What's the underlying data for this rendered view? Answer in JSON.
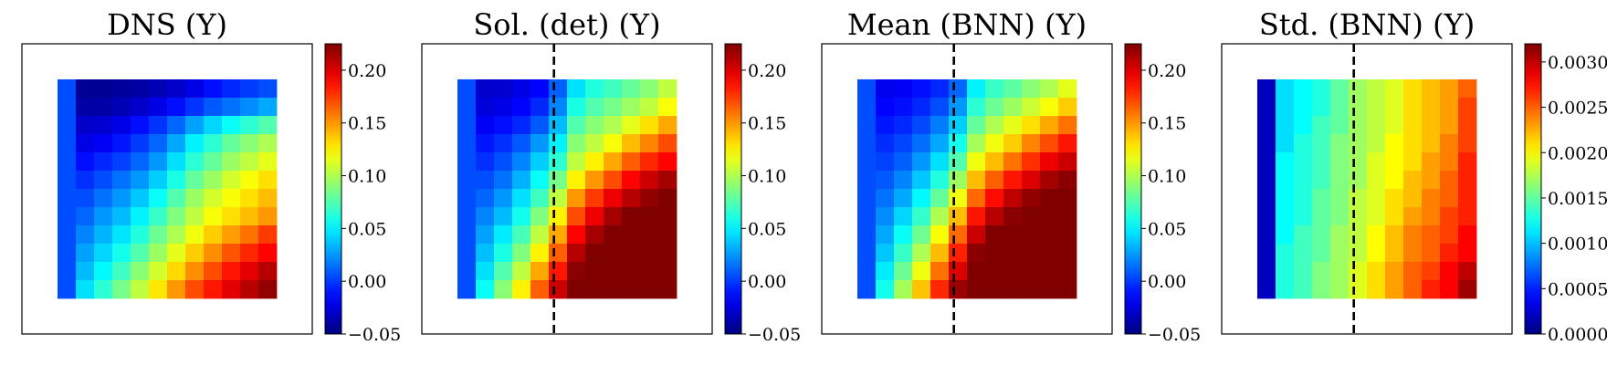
{
  "chart_data": [
    {
      "type": "heatmap",
      "title": "DNS (Y)",
      "grid_rows": 12,
      "grid_cols": 12,
      "colormap": "jet",
      "vmin": -0.05,
      "vmax": 0.225,
      "colorbar_ticks": [
        -0.05,
        0.0,
        0.05,
        0.1,
        0.15,
        0.2
      ],
      "colorbar_tick_labels": [
        "−0.05",
        "0.00",
        "0.05",
        "0.10",
        "0.15",
        "0.20"
      ],
      "dashed_line_x": null,
      "values": [
        [
          0.005,
          -0.045,
          -0.045,
          -0.042,
          -0.04,
          -0.035,
          -0.03,
          -0.022,
          -0.012,
          -0.005,
          0.0,
          0.005
        ],
        [
          0.005,
          -0.04,
          -0.04,
          -0.035,
          -0.03,
          -0.022,
          -0.012,
          -0.002,
          0.008,
          0.015,
          0.022,
          0.03
        ],
        [
          0.005,
          -0.03,
          -0.028,
          -0.022,
          -0.012,
          -0.002,
          0.012,
          0.028,
          0.042,
          0.055,
          0.065,
          0.075
        ],
        [
          0.005,
          -0.022,
          -0.018,
          -0.01,
          0.0,
          0.012,
          0.03,
          0.05,
          0.065,
          0.08,
          0.09,
          0.1
        ],
        [
          0.005,
          -0.012,
          -0.005,
          0.002,
          0.012,
          0.025,
          0.045,
          0.065,
          0.08,
          0.095,
          0.105,
          0.115
        ],
        [
          0.005,
          -0.003,
          0.005,
          0.015,
          0.025,
          0.04,
          0.06,
          0.08,
          0.095,
          0.11,
          0.12,
          0.13
        ],
        [
          0.005,
          0.005,
          0.015,
          0.025,
          0.038,
          0.055,
          0.075,
          0.095,
          0.11,
          0.12,
          0.13,
          0.14
        ],
        [
          0.005,
          0.012,
          0.025,
          0.035,
          0.05,
          0.068,
          0.088,
          0.105,
          0.12,
          0.13,
          0.14,
          0.15
        ],
        [
          0.005,
          0.02,
          0.033,
          0.046,
          0.062,
          0.082,
          0.1,
          0.118,
          0.135,
          0.148,
          0.16,
          0.175
        ],
        [
          0.005,
          0.028,
          0.042,
          0.058,
          0.075,
          0.095,
          0.115,
          0.135,
          0.152,
          0.168,
          0.18,
          0.19
        ],
        [
          0.005,
          0.035,
          0.052,
          0.07,
          0.09,
          0.11,
          0.132,
          0.152,
          0.17,
          0.185,
          0.198,
          0.21
        ],
        [
          0.005,
          0.045,
          0.065,
          0.085,
          0.105,
          0.128,
          0.15,
          0.17,
          0.185,
          0.198,
          0.21,
          0.22
        ]
      ]
    },
    {
      "type": "heatmap",
      "title": "Sol. (det) (Y)",
      "grid_rows": 12,
      "grid_cols": 12,
      "colormap": "jet",
      "vmin": -0.05,
      "vmax": 0.225,
      "colorbar_ticks": [
        -0.05,
        0.0,
        0.05,
        0.1,
        0.15,
        0.2
      ],
      "colorbar_tick_labels": [
        "−0.05",
        "0.00",
        "0.05",
        "0.10",
        "0.15",
        "0.20"
      ],
      "dashed_line_x": 0.455,
      "values": [
        [
          0.005,
          -0.03,
          -0.028,
          -0.022,
          -0.015,
          0.01,
          0.045,
          0.062,
          0.07,
          0.08,
          0.09,
          0.105
        ],
        [
          0.005,
          -0.025,
          -0.022,
          -0.015,
          -0.005,
          0.02,
          0.06,
          0.075,
          0.085,
          0.095,
          0.105,
          0.12
        ],
        [
          0.005,
          -0.018,
          -0.012,
          -0.005,
          0.008,
          0.035,
          0.075,
          0.09,
          0.1,
          0.115,
          0.13,
          0.145
        ],
        [
          0.005,
          -0.01,
          -0.003,
          0.008,
          0.025,
          0.05,
          0.09,
          0.105,
          0.12,
          0.14,
          0.155,
          0.17
        ],
        [
          0.005,
          -0.003,
          0.006,
          0.02,
          0.04,
          0.065,
          0.105,
          0.125,
          0.145,
          0.165,
          0.18,
          0.19
        ],
        [
          0.005,
          0.005,
          0.015,
          0.032,
          0.055,
          0.085,
          0.125,
          0.15,
          0.17,
          0.19,
          0.205,
          0.215
        ],
        [
          0.005,
          0.012,
          0.025,
          0.045,
          0.07,
          0.105,
          0.15,
          0.175,
          0.195,
          0.21,
          0.22,
          0.225
        ],
        [
          0.005,
          0.02,
          0.035,
          0.058,
          0.088,
          0.125,
          0.17,
          0.195,
          0.215,
          0.225,
          0.225,
          0.225
        ],
        [
          0.005,
          0.028,
          0.048,
          0.072,
          0.105,
          0.145,
          0.19,
          0.215,
          0.225,
          0.225,
          0.225,
          0.225
        ],
        [
          0.005,
          0.036,
          0.06,
          0.088,
          0.125,
          0.165,
          0.21,
          0.225,
          0.225,
          0.225,
          0.225,
          0.225
        ],
        [
          0.005,
          0.045,
          0.075,
          0.105,
          0.145,
          0.185,
          0.222,
          0.225,
          0.225,
          0.225,
          0.225,
          0.225
        ],
        [
          0.005,
          0.055,
          0.09,
          0.125,
          0.165,
          0.205,
          0.225,
          0.225,
          0.225,
          0.225,
          0.225,
          0.225
        ]
      ]
    },
    {
      "type": "heatmap",
      "title": "Mean (BNN) (Y)",
      "grid_rows": 12,
      "grid_cols": 12,
      "colormap": "jet",
      "vmin": -0.05,
      "vmax": 0.225,
      "colorbar_ticks": [
        -0.05,
        0.0,
        0.05,
        0.1,
        0.15,
        0.2
      ],
      "colorbar_tick_labels": [
        "−0.05",
        "0.00",
        "0.05",
        "0.10",
        "0.15",
        "0.20"
      ],
      "dashed_line_x": 0.455,
      "values": [
        [
          0.005,
          -0.02,
          -0.018,
          -0.012,
          -0.005,
          0.012,
          0.05,
          0.068,
          0.078,
          0.09,
          0.1,
          0.115
        ],
        [
          0.005,
          -0.015,
          -0.012,
          -0.005,
          0.005,
          0.025,
          0.065,
          0.082,
          0.095,
          0.108,
          0.12,
          0.135
        ],
        [
          0.005,
          -0.01,
          -0.005,
          0.004,
          0.018,
          0.04,
          0.08,
          0.1,
          0.115,
          0.13,
          0.145,
          0.16
        ],
        [
          0.005,
          -0.004,
          0.003,
          0.014,
          0.03,
          0.058,
          0.098,
          0.118,
          0.135,
          0.155,
          0.17,
          0.185
        ],
        [
          0.005,
          0.002,
          0.01,
          0.025,
          0.045,
          0.075,
          0.118,
          0.14,
          0.16,
          0.178,
          0.195,
          0.205
        ],
        [
          0.005,
          0.008,
          0.02,
          0.038,
          0.062,
          0.095,
          0.14,
          0.165,
          0.185,
          0.2,
          0.215,
          0.222
        ],
        [
          0.005,
          0.015,
          0.03,
          0.052,
          0.08,
          0.118,
          0.162,
          0.188,
          0.208,
          0.22,
          0.225,
          0.225
        ],
        [
          0.005,
          0.022,
          0.042,
          0.067,
          0.1,
          0.14,
          0.185,
          0.21,
          0.222,
          0.225,
          0.225,
          0.225
        ],
        [
          0.005,
          0.03,
          0.055,
          0.083,
          0.12,
          0.162,
          0.205,
          0.225,
          0.225,
          0.225,
          0.225,
          0.225
        ],
        [
          0.005,
          0.038,
          0.068,
          0.1,
          0.14,
          0.182,
          0.222,
          0.225,
          0.225,
          0.225,
          0.225,
          0.225
        ],
        [
          0.005,
          0.048,
          0.082,
          0.118,
          0.16,
          0.2,
          0.225,
          0.225,
          0.225,
          0.225,
          0.225,
          0.225
        ],
        [
          0.005,
          0.058,
          0.098,
          0.138,
          0.18,
          0.218,
          0.225,
          0.225,
          0.225,
          0.225,
          0.225,
          0.225
        ]
      ]
    },
    {
      "type": "heatmap",
      "title": "Std. (BNN) (Y)",
      "grid_rows": 12,
      "grid_cols": 12,
      "colormap": "jet",
      "vmin": 0.0,
      "vmax": 0.0032,
      "colorbar_ticks": [
        0.0,
        0.0005,
        0.001,
        0.0015,
        0.002,
        0.0025,
        0.003
      ],
      "colorbar_tick_labels": [
        "0.0000",
        "0.0005",
        "0.0010",
        "0.0015",
        "0.0020",
        "0.0025",
        "0.0030"
      ],
      "dashed_line_x": 0.455,
      "values": [
        [
          0.0002,
          0.0011,
          0.0012,
          0.0013,
          0.0015,
          0.0017,
          0.0018,
          0.0019,
          0.0021,
          0.0022,
          0.0023,
          0.0025
        ],
        [
          0.0002,
          0.0011,
          0.0012,
          0.0013,
          0.0015,
          0.0017,
          0.0018,
          0.0019,
          0.0021,
          0.0022,
          0.0023,
          0.0026
        ],
        [
          0.0002,
          0.0011,
          0.0012,
          0.0014,
          0.0015,
          0.0017,
          0.0018,
          0.0019,
          0.0021,
          0.0022,
          0.0023,
          0.0026
        ],
        [
          0.0002,
          0.0011,
          0.0013,
          0.0014,
          0.0016,
          0.0017,
          0.0018,
          0.002,
          0.0021,
          0.0022,
          0.0024,
          0.0026
        ],
        [
          0.0002,
          0.0012,
          0.0013,
          0.0014,
          0.0016,
          0.0017,
          0.0019,
          0.002,
          0.0021,
          0.0023,
          0.0024,
          0.0027
        ],
        [
          0.0002,
          0.0012,
          0.0013,
          0.0014,
          0.0016,
          0.0017,
          0.0019,
          0.002,
          0.0022,
          0.0023,
          0.0025,
          0.0027
        ],
        [
          0.0002,
          0.0012,
          0.0013,
          0.0015,
          0.0016,
          0.0018,
          0.0019,
          0.0021,
          0.0022,
          0.0024,
          0.0025,
          0.0027
        ],
        [
          0.0002,
          0.0012,
          0.0013,
          0.0015,
          0.0016,
          0.0018,
          0.0019,
          0.0021,
          0.0023,
          0.0024,
          0.0026,
          0.0027
        ],
        [
          0.0002,
          0.0012,
          0.0014,
          0.0015,
          0.0017,
          0.0018,
          0.002,
          0.0022,
          0.0024,
          0.0025,
          0.0026,
          0.0028
        ],
        [
          0.0002,
          0.0013,
          0.0014,
          0.0015,
          0.0017,
          0.0018,
          0.002,
          0.0022,
          0.0024,
          0.0025,
          0.0027,
          0.0028
        ],
        [
          0.0002,
          0.0013,
          0.0014,
          0.0016,
          0.0017,
          0.0019,
          0.0021,
          0.0023,
          0.0025,
          0.0026,
          0.0028,
          0.003
        ],
        [
          0.0002,
          0.0013,
          0.0014,
          0.0016,
          0.0017,
          0.0019,
          0.0021,
          0.0023,
          0.0025,
          0.0027,
          0.0028,
          0.0031
        ]
      ]
    }
  ]
}
